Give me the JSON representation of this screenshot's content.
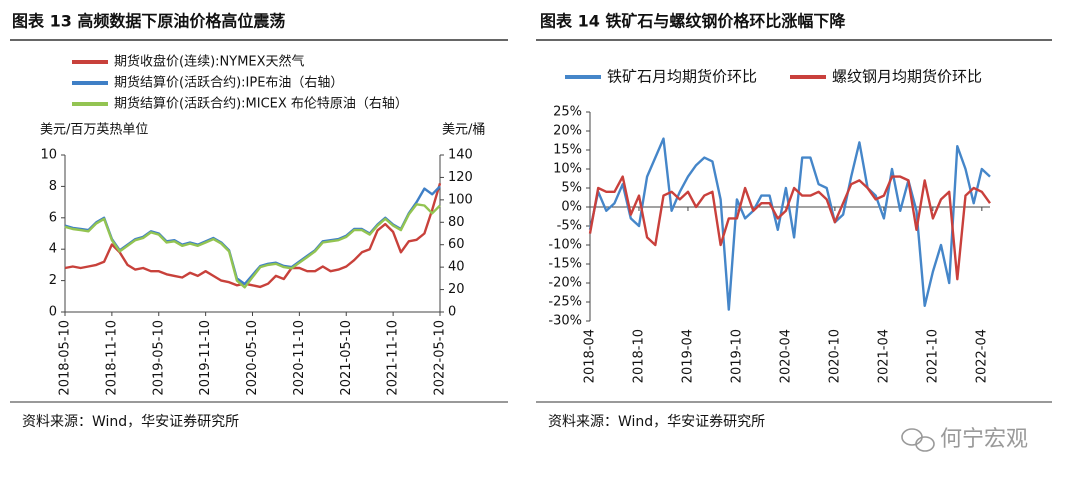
{
  "chart_data": [
    {
      "type": "line",
      "title": "图表 13  高频数据下原油价格高位震荡",
      "y_label": "美元/百万英热单位",
      "y2_label": "美元/桶",
      "source": "资料来源：Wind，华安证券研究所",
      "x": [
        "2018-05-10",
        "2018-06-10",
        "2018-07-10",
        "2018-08-10",
        "2018-09-10",
        "2018-10-10",
        "2018-11-10",
        "2018-12-10",
        "2019-01-10",
        "2019-02-10",
        "2019-03-10",
        "2019-04-10",
        "2019-05-10",
        "2019-06-10",
        "2019-07-10",
        "2019-08-10",
        "2019-09-10",
        "2019-10-10",
        "2019-11-10",
        "2019-12-10",
        "2020-01-10",
        "2020-02-10",
        "2020-03-10",
        "2020-04-10",
        "2020-05-10",
        "2020-06-10",
        "2020-07-10",
        "2020-08-10",
        "2020-09-10",
        "2020-10-10",
        "2020-11-10",
        "2020-12-10",
        "2021-01-10",
        "2021-02-10",
        "2021-03-10",
        "2021-04-10",
        "2021-05-10",
        "2021-06-10",
        "2021-07-10",
        "2021-08-10",
        "2021-09-10",
        "2021-10-10",
        "2021-11-10",
        "2021-12-10",
        "2022-01-10",
        "2022-02-10",
        "2022-03-10",
        "2022-04-10",
        "2022-05-10"
      ],
      "xlim": [
        "2018-05-10",
        "2022-05-10"
      ],
      "xticks": [
        "2018-05-10",
        "2018-11-10",
        "2019-05-10",
        "2019-11-10",
        "2020-05-10",
        "2020-11-10",
        "2021-05-10",
        "2021-11-10",
        "2022-05-10"
      ],
      "ylim": [
        0,
        10
      ],
      "yticks": [
        0,
        2,
        4,
        6,
        8,
        10
      ],
      "y2lim": [
        0,
        140
      ],
      "y2ticks": [
        0,
        20,
        40,
        60,
        80,
        100,
        120,
        140
      ],
      "series": [
        {
          "name": "期货收盘价(连续):NYMEX天然气",
          "color": "#c8413b",
          "axis": "y",
          "values": [
            2.8,
            2.9,
            2.8,
            2.9,
            3.0,
            3.2,
            4.3,
            3.8,
            3.0,
            2.7,
            2.8,
            2.6,
            2.6,
            2.4,
            2.3,
            2.2,
            2.5,
            2.3,
            2.6,
            2.3,
            2.0,
            1.9,
            1.7,
            1.8,
            1.7,
            1.6,
            1.8,
            2.3,
            2.1,
            2.8,
            2.8,
            2.6,
            2.6,
            2.9,
            2.6,
            2.7,
            2.9,
            3.3,
            3.8,
            4.0,
            5.2,
            5.6,
            5.1,
            3.8,
            4.5,
            4.6,
            5.0,
            6.5,
            8.2
          ]
        },
        {
          "name": "期货结算价(活跃合约):IPE布油（右轴）",
          "color": "#3f7fc6",
          "axis": "y2",
          "values": [
            77,
            75,
            74,
            73,
            80,
            84,
            65,
            55,
            60,
            65,
            67,
            72,
            70,
            63,
            64,
            60,
            62,
            60,
            63,
            66,
            62,
            55,
            30,
            25,
            33,
            41,
            43,
            44,
            41,
            40,
            45,
            50,
            55,
            63,
            64,
            65,
            68,
            74,
            74,
            70,
            78,
            84,
            78,
            74,
            88,
            98,
            110,
            105,
            112
          ]
        },
        {
          "name": "期货结算价(活跃合约):MICEX 布伦特原油（右轴）",
          "color": "#93c452",
          "axis": "y2",
          "values": [
            76,
            74,
            73,
            72,
            79,
            83,
            64,
            54,
            59,
            64,
            66,
            71,
            69,
            62,
            63,
            59,
            61,
            59,
            62,
            65,
            61,
            54,
            28,
            22,
            31,
            40,
            42,
            43,
            40,
            39,
            44,
            49,
            54,
            62,
            63,
            64,
            67,
            73,
            73,
            69,
            77,
            83,
            77,
            73,
            87,
            96,
            95,
            88,
            95
          ]
        }
      ]
    },
    {
      "type": "line",
      "title": "图表 14  铁矿石与螺纹钢价格环比涨幅下降",
      "source": "资料来源：Wind，华安证券研究所",
      "x": [
        "2018-04",
        "2018-05",
        "2018-06",
        "2018-07",
        "2018-08",
        "2018-09",
        "2018-10",
        "2018-11",
        "2018-12",
        "2019-01",
        "2019-02",
        "2019-03",
        "2019-04",
        "2019-05",
        "2019-06",
        "2019-07",
        "2019-08",
        "2019-09",
        "2019-10",
        "2019-11",
        "2019-12",
        "2020-01",
        "2020-02",
        "2020-03",
        "2020-04",
        "2020-05",
        "2020-06",
        "2020-07",
        "2020-08",
        "2020-09",
        "2020-10",
        "2020-11",
        "2020-12",
        "2021-01",
        "2021-02",
        "2021-03",
        "2021-04",
        "2021-05",
        "2021-06",
        "2021-07",
        "2021-08",
        "2021-09",
        "2021-10",
        "2021-11",
        "2021-12",
        "2022-01",
        "2022-02",
        "2022-03",
        "2022-04",
        "2022-05"
      ],
      "xlim": [
        "2018-04",
        "2022-05"
      ],
      "xticks": [
        "2018-04",
        "2018-10",
        "2019-04",
        "2019-10",
        "2020-04",
        "2020-10",
        "2021-04",
        "2021-10",
        "2022-04"
      ],
      "ylim": [
        -30,
        25
      ],
      "yticks": [
        {
          "value": -30,
          "label": "-30%"
        },
        {
          "value": -25,
          "label": "-25%"
        },
        {
          "value": -20,
          "label": "-20%"
        },
        {
          "value": -15,
          "label": "-15%"
        },
        {
          "value": -10,
          "label": "-10%"
        },
        {
          "value": -5,
          "label": "-5%"
        },
        {
          "value": 0,
          "label": "0%"
        },
        {
          "value": 5,
          "label": "5%"
        },
        {
          "value": 10,
          "label": "10%"
        },
        {
          "value": 15,
          "label": "15%"
        },
        {
          "value": 20,
          "label": "20%"
        },
        {
          "value": 25,
          "label": "25%"
        }
      ],
      "series": [
        {
          "name": "铁矿石月均期货价环比",
          "color": "#4586c9",
          "values": [
            -6,
            4,
            -1,
            1,
            6,
            -3,
            -5,
            8,
            13,
            18,
            -1,
            4,
            8,
            11,
            13,
            12,
            2,
            -27,
            2,
            -3,
            -1,
            3,
            3,
            -6,
            5,
            -8,
            13,
            13,
            6,
            5,
            -4,
            -2,
            8,
            17,
            5,
            3,
            -3,
            10,
            -1,
            7,
            -1,
            -26,
            -17,
            -10,
            -20,
            16,
            10,
            1,
            10,
            8
          ]
        },
        {
          "name": "螺纹钢月均期货价环比",
          "color": "#c9403c",
          "values": [
            -7,
            5,
            4,
            4,
            8,
            -2,
            3,
            -8,
            -10,
            3,
            4,
            2,
            4,
            0,
            3,
            4,
            -10,
            -3,
            -3,
            5,
            -1,
            1,
            1,
            -3,
            -1,
            5,
            3,
            3,
            4,
            2,
            -4,
            1,
            6,
            7,
            5,
            2,
            3,
            8,
            8,
            7,
            -6,
            7,
            -3,
            2,
            4,
            -19,
            3,
            5,
            4,
            1
          ]
        }
      ]
    }
  ],
  "watermark": "何宁宏观"
}
